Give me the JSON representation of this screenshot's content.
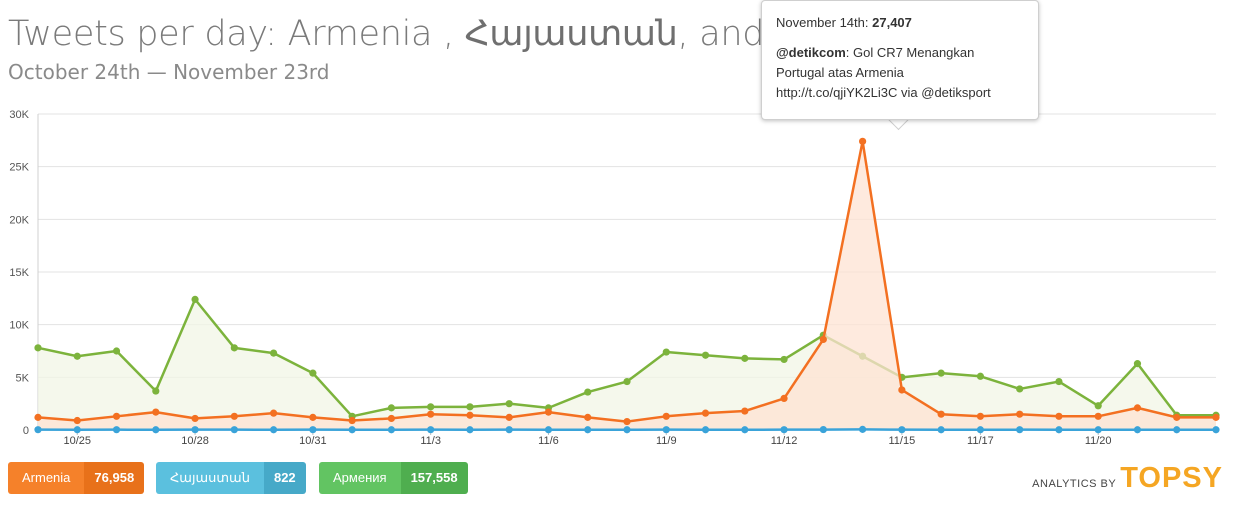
{
  "header": {
    "title_prefix": "Tweets per day: Armenia , ",
    "title_armenian": "Հայաստան",
    "title_suffix": ", and Ap",
    "subtitle": "October 24th — November 23rd"
  },
  "tooltip": {
    "date_label": "November 14th:",
    "count": "27,407",
    "handle": "@detikcom",
    "text_line1": ": Gol CR7 Menangkan",
    "text_line2": "Portugal atas Armenia",
    "text_line3": "http://t.co/qjiYK2Li3C via @detiksport"
  },
  "legend": [
    {
      "name": "Armenia",
      "total": "76,958",
      "color": "#f5812a",
      "dark": "#e8711a"
    },
    {
      "name": "Հայաստան",
      "total": "822",
      "color": "#5bc0de",
      "dark": "#46a9c8"
    },
    {
      "name": "Армения",
      "total": "157,558",
      "color": "#62c462",
      "dark": "#4fae4f"
    }
  ],
  "brand": {
    "by": "ANALYTICS BY",
    "logo": "TOPSY",
    "color": "#f5a623"
  },
  "chart_data": {
    "type": "area",
    "title": "Tweets per day: Armenia , Հայաստան, and Ap",
    "subtitle": "October 24th — November 23rd",
    "ylim": [
      0,
      30000
    ],
    "y_ticks": [
      "0",
      "5K",
      "10K",
      "15K",
      "20K",
      "25K",
      "30K"
    ],
    "y_tick_values": [
      0,
      5000,
      10000,
      15000,
      20000,
      25000,
      30000
    ],
    "x_ticks": [
      "10/25",
      "10/28",
      "10/31",
      "11/3",
      "11/6",
      "11/9",
      "11/12",
      "11/15",
      "11/17",
      "11/20"
    ],
    "x_tick_index": [
      1,
      4,
      7,
      10,
      13,
      16,
      19,
      22,
      24,
      27
    ],
    "x": [
      "10/24",
      "10/25",
      "10/26",
      "10/27",
      "10/28",
      "10/29",
      "10/30",
      "10/31",
      "11/1",
      "11/2",
      "11/3",
      "11/4",
      "11/5",
      "11/6",
      "11/7",
      "11/8",
      "11/9",
      "11/10",
      "11/11",
      "11/12",
      "11/13",
      "11/14",
      "11/15",
      "11/16",
      "11/17",
      "11/18",
      "11/19",
      "11/20",
      "11/21",
      "11/22",
      "11/23"
    ],
    "grid": true,
    "series": [
      {
        "name": "Армения",
        "color": "#7cb33c",
        "fill": "#f1f6e6",
        "values": [
          7800,
          7000,
          7500,
          3700,
          12400,
          7800,
          7300,
          5400,
          1300,
          2100,
          2200,
          2200,
          2500,
          2100,
          3600,
          4600,
          7400,
          7100,
          6800,
          6700,
          9000,
          7000,
          5000,
          5400,
          5100,
          3900,
          4600,
          2300,
          6300,
          1400,
          1400
        ]
      },
      {
        "name": "Armenia",
        "color": "#f37021",
        "fill": "#fde3d3",
        "values": [
          1200,
          900,
          1300,
          1700,
          1100,
          1300,
          1600,
          1200,
          900,
          1100,
          1500,
          1400,
          1200,
          1700,
          1200,
          800,
          1300,
          1600,
          1800,
          3000,
          8600,
          27407,
          3800,
          1500,
          1300,
          1500,
          1300,
          1300,
          2100,
          1200,
          1200
        ]
      },
      {
        "name": "Հայաստան",
        "color": "#3aa3d9",
        "fill": "none",
        "values": [
          30,
          25,
          30,
          25,
          30,
          30,
          25,
          30,
          25,
          25,
          30,
          25,
          30,
          25,
          25,
          25,
          30,
          25,
          25,
          30,
          40,
          60,
          30,
          25,
          25,
          30,
          25,
          25,
          25,
          25,
          25
        ]
      }
    ]
  }
}
